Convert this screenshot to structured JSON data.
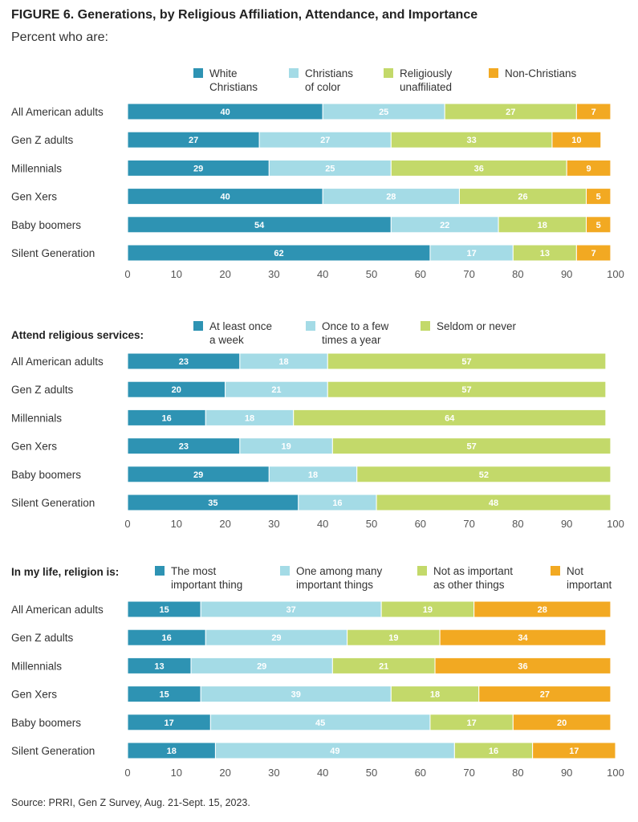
{
  "figure": {
    "title": "FIGURE 6.  Generations, by Religious Affiliation, Attendance, and Importance",
    "subtitle": "Percent who are:",
    "source": "Source: PRRI, Gen Z Survey, Aug. 21-Sept. 15, 2023."
  },
  "chart_data": [
    {
      "type": "bar",
      "orientation": "horizontal-stacked",
      "title": "",
      "categories": [
        "All American adults",
        "Gen Z adults",
        "Millennials",
        "Gen Xers",
        "Baby boomers",
        "Silent Generation"
      ],
      "xlim": [
        0,
        100
      ],
      "xticks": [
        0,
        10,
        20,
        30,
        40,
        50,
        60,
        70,
        80,
        90,
        100
      ],
      "legend_placement": "top",
      "series": [
        {
          "name": "White Christians",
          "legend_lines": [
            "White",
            "Christians"
          ],
          "color": "#2e93b3",
          "values": [
            40,
            27,
            29,
            40,
            54,
            62
          ]
        },
        {
          "name": "Christians of color",
          "legend_lines": [
            "Christians",
            "of color"
          ],
          "color": "#a4dbe6",
          "values": [
            25,
            27,
            25,
            28,
            22,
            17
          ]
        },
        {
          "name": "Religiously unaffiliated",
          "legend_lines": [
            "Religiously",
            "unaffiliated"
          ],
          "color": "#c3d96a",
          "values": [
            27,
            33,
            36,
            26,
            18,
            13
          ]
        },
        {
          "name": "Non-Christians",
          "legend_lines": [
            "Non-Christians"
          ],
          "color": "#f2a922",
          "values": [
            7,
            10,
            9,
            5,
            5,
            7
          ]
        }
      ]
    },
    {
      "type": "bar",
      "orientation": "horizontal-stacked",
      "title": "Attend religious services:",
      "categories": [
        "All American adults",
        "Gen Z adults",
        "Millennials",
        "Gen Xers",
        "Baby boomers",
        "Silent Generation"
      ],
      "xlim": [
        0,
        100
      ],
      "xticks": [
        0,
        10,
        20,
        30,
        40,
        50,
        60,
        70,
        80,
        90,
        100
      ],
      "legend_placement": "top",
      "series": [
        {
          "name": "At least once a week",
          "legend_lines": [
            "At least once",
            "a week"
          ],
          "color": "#2e93b3",
          "values": [
            23,
            20,
            16,
            23,
            29,
            35
          ]
        },
        {
          "name": "Once to a few times a year",
          "legend_lines": [
            "Once to a few",
            "times a year"
          ],
          "color": "#a4dbe6",
          "values": [
            18,
            21,
            18,
            19,
            18,
            16
          ]
        },
        {
          "name": "Seldom or never",
          "legend_lines": [
            "Seldom or never"
          ],
          "color": "#c3d96a",
          "values": [
            57,
            57,
            64,
            57,
            52,
            48
          ]
        }
      ]
    },
    {
      "type": "bar",
      "orientation": "horizontal-stacked",
      "title": "In my life, religion is:",
      "categories": [
        "All American adults",
        "Gen Z adults",
        "Millennials",
        "Gen Xers",
        "Baby boomers",
        "Silent Generation"
      ],
      "xlim": [
        0,
        100
      ],
      "xticks": [
        0,
        10,
        20,
        30,
        40,
        50,
        60,
        70,
        80,
        90,
        100
      ],
      "legend_placement": "top",
      "series": [
        {
          "name": "The most important thing",
          "legend_lines": [
            "The most",
            "important thing"
          ],
          "color": "#2e93b3",
          "values": [
            15,
            16,
            13,
            15,
            17,
            18
          ]
        },
        {
          "name": "One among many important things",
          "legend_lines": [
            "One among many",
            "important things"
          ],
          "color": "#a4dbe6",
          "values": [
            37,
            29,
            29,
            39,
            45,
            49
          ]
        },
        {
          "name": "Not as important as other things",
          "legend_lines": [
            "Not as important",
            "as other things"
          ],
          "color": "#c3d96a",
          "values": [
            19,
            19,
            21,
            18,
            17,
            16
          ]
        },
        {
          "name": "Not important",
          "legend_lines": [
            "Not",
            "important"
          ],
          "color": "#f2a922",
          "values": [
            28,
            34,
            36,
            27,
            20,
            17
          ]
        }
      ]
    }
  ]
}
